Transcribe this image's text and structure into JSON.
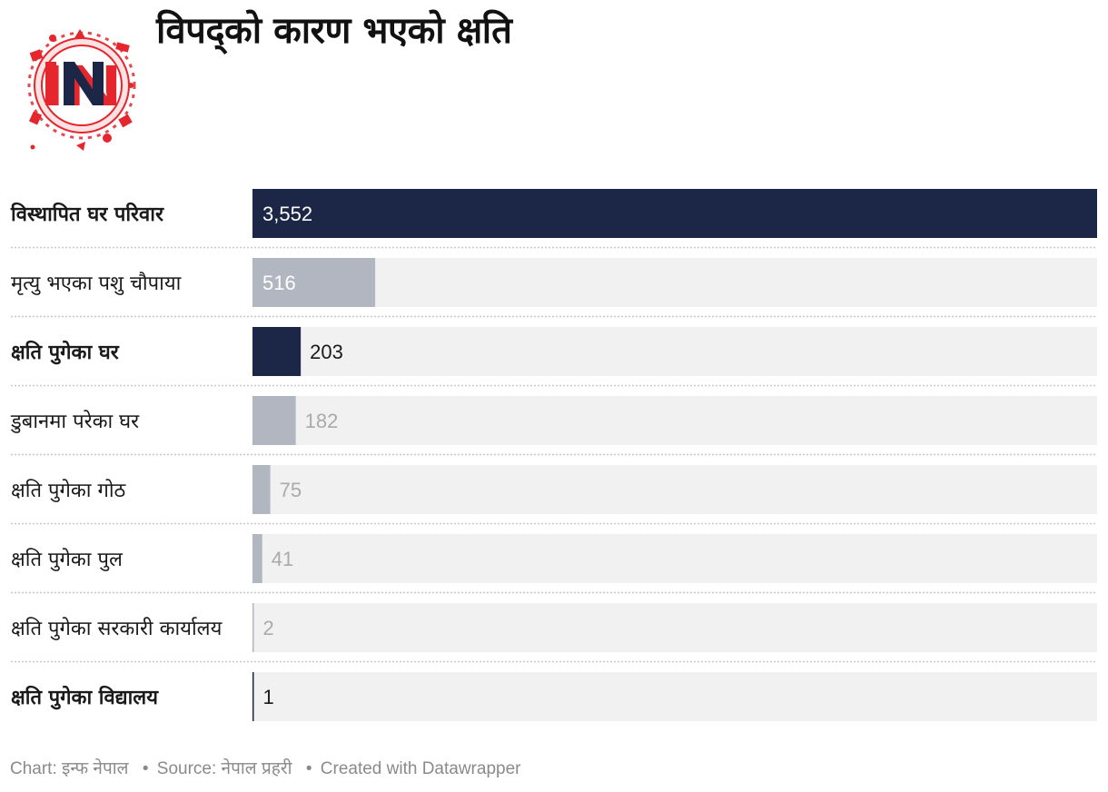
{
  "header": {
    "title": "विपद्को कारण भएको क्षति",
    "logo_text": "IN"
  },
  "colors": {
    "highlight_bar": "#1c2748",
    "normal_bar": "#b2b6c1",
    "track": "#f1f1f1",
    "label_dark": "#1a1a1a",
    "value_on_bar": "#ffffff",
    "value_muted": "#aaaaaa",
    "logo_red": "#e5262d"
  },
  "chart_data": {
    "type": "bar",
    "orientation": "horizontal",
    "title": "विपद्को कारण भएको क्षति",
    "xlim": [
      0,
      3552
    ],
    "categories": [
      "विस्थापित घर परिवार",
      "मृत्यु भएका पशु चौपाया",
      "क्षति पुगेका घर",
      "डुबानमा परेका घर",
      "क्षति पुगेका गोठ",
      "क्षति पुगेका पुल",
      "क्षति पुगेका सरकारी कार्यालय",
      "क्षति पुगेका विद्यालय"
    ],
    "values": [
      3552,
      516,
      203,
      182,
      75,
      41,
      2,
      1
    ],
    "value_labels": [
      "3,552",
      "516",
      "203",
      "182",
      "75",
      "41",
      "2",
      "1"
    ],
    "highlighted": [
      true,
      false,
      true,
      false,
      false,
      false,
      false,
      true
    ]
  },
  "footer": {
    "chart_credit": "Chart: इन्फ नेपाल",
    "source": "Source: नेपाल प्रहरी",
    "created_with": "Created with Datawrapper"
  }
}
